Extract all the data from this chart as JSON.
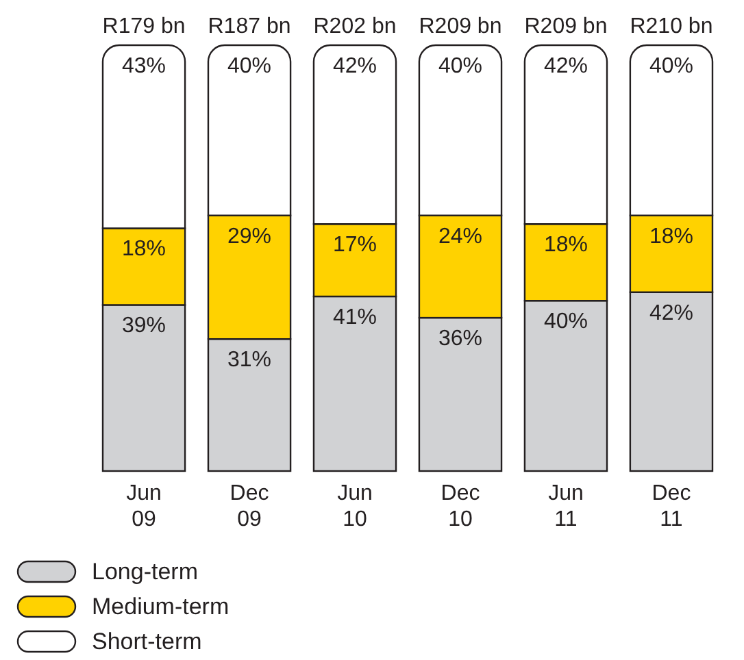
{
  "chart_data": {
    "type": "bar",
    "stacked": true,
    "legend": "bottom left",
    "categories": [
      "Jun 09",
      "Dec 09",
      "Jun 10",
      "Dec 10",
      "Jun 11",
      "Dec 11"
    ],
    "series": [
      {
        "name": "Long-term",
        "color": "#d1d2d4",
        "values": [
          39,
          31,
          41,
          36,
          40,
          42
        ],
        "value_labels": [
          "39%",
          "31%",
          "41%",
          "36%",
          "40%",
          "42%"
        ]
      },
      {
        "name": "Medium-term",
        "color": "#ffd200",
        "values": [
          18,
          29,
          17,
          24,
          18,
          18
        ],
        "value_labels": [
          "18%",
          "29%",
          "17%",
          "24%",
          "18%",
          "18%"
        ]
      },
      {
        "name": "Short-term",
        "color": "#ffffff",
        "values": [
          43,
          40,
          42,
          40,
          42,
          40
        ],
        "value_labels": [
          "43%",
          "40%",
          "42%",
          "40%",
          "42%",
          "40%"
        ]
      }
    ],
    "totals": [
      "R179 bn",
      "R187 bn",
      "R202 bn",
      "R209 bn",
      "R209 bn",
      "R210 bn"
    ]
  }
}
